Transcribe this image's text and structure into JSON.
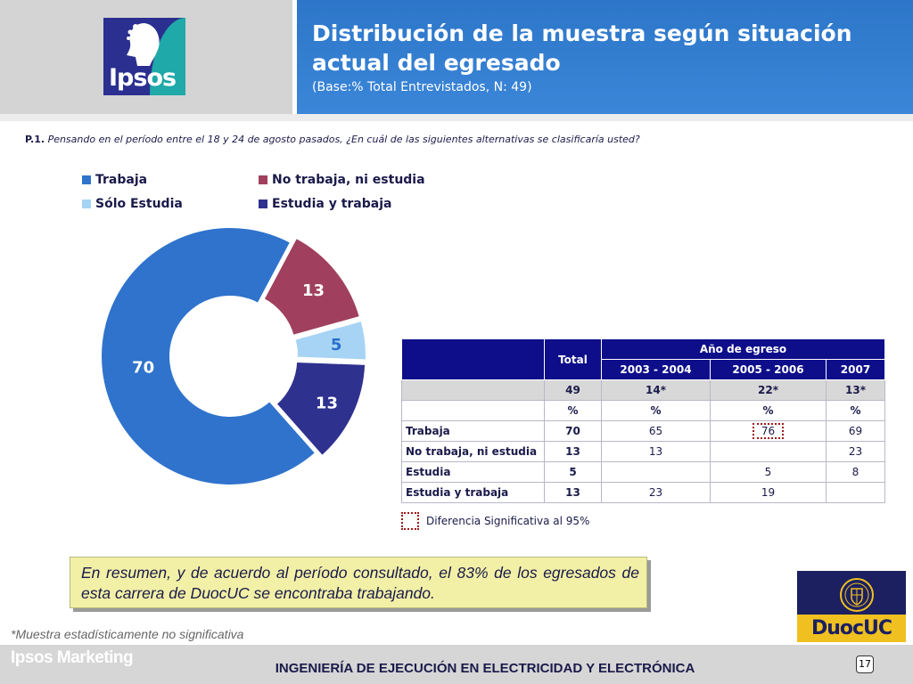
{
  "header": {
    "logo_text": "Ipsos",
    "title": "Distribución de la muestra según situación actual del egresado",
    "subtitle": "(Base:% Total Entrevistados, N: 49)"
  },
  "question": {
    "number": "P.1.",
    "text": "Pensando en el período entre el 18 y 24 de agosto pasados, ¿En cuál de las siguientes alternativas se clasificaría usted?"
  },
  "chart_data": {
    "type": "pie",
    "donut": true,
    "legend_position": "top",
    "series": [
      {
        "name": "Trabaja",
        "value": 70,
        "color": "#2f73cc"
      },
      {
        "name": "No trabaja, ni estudia",
        "value": 13,
        "color": "#a0405e"
      },
      {
        "name": "Sólo Estudia",
        "value": 5,
        "color": "#a7d4f4"
      },
      {
        "name": "Estudia y trabaja",
        "value": 13,
        "color": "#2e318e"
      }
    ]
  },
  "table": {
    "year_header": "Año de egreso",
    "total_header": "Total",
    "columns": [
      "2003 - 2004",
      "2005 - 2006",
      "2007"
    ],
    "base": {
      "total": "49",
      "values": [
        "14*",
        "22*",
        "13*"
      ]
    },
    "pct_label": "%",
    "rows": [
      {
        "label": "Trabaja",
        "total": "70",
        "values": [
          "65",
          "76",
          "69"
        ],
        "significant": [
          false,
          true,
          false
        ]
      },
      {
        "label": "No trabaja, ni estudia",
        "total": "13",
        "values": [
          "13",
          "",
          "23"
        ],
        "significant": [
          false,
          false,
          false
        ]
      },
      {
        "label": "Estudia",
        "total": "5",
        "values": [
          "",
          "5",
          "8"
        ],
        "significant": [
          false,
          false,
          false
        ]
      },
      {
        "label": "Estudia y trabaja",
        "total": "13",
        "values": [
          "23",
          "19",
          ""
        ],
        "significant": [
          false,
          false,
          false
        ]
      }
    ]
  },
  "significance_legend": "Diferencia Significativa al 95%",
  "summary": "En resumen, y de acuerdo al período consultado, el 83% de los egresados de esta carrera de DuocUC se encontraba trabajando.",
  "note": "*Muestra estadísticamente no significativa",
  "duoc_logo_text": "DuocUC",
  "footer": {
    "brand": "Ipsos Marketing",
    "title": "INGENIERÍA DE EJECUCIÓN EN ELECTRICIDAD Y ELECTRÓNICA",
    "page_number": "17"
  }
}
